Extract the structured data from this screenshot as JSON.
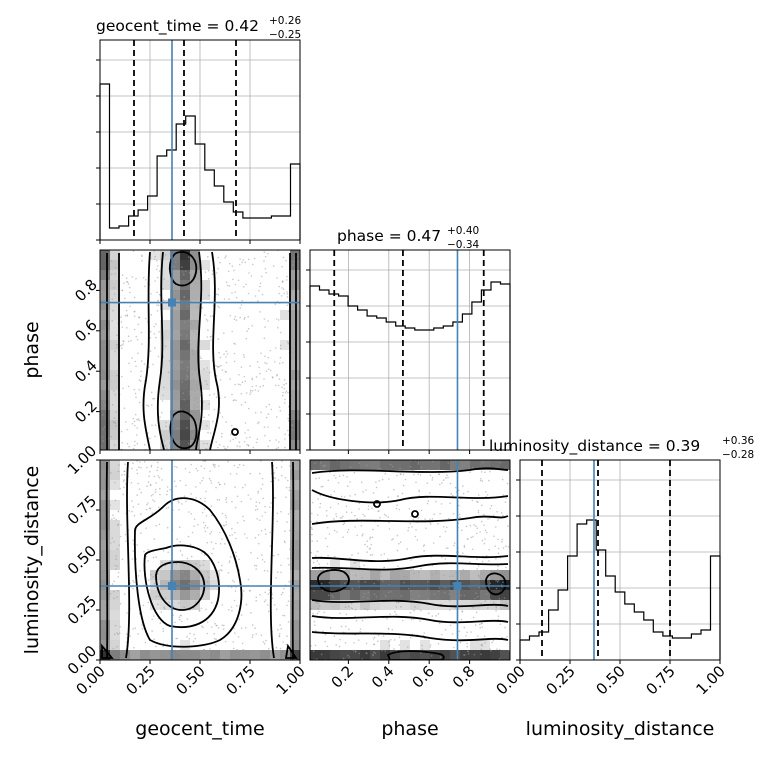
{
  "chart_data": {
    "type": "corner",
    "parameters": [
      {
        "name": "geocent_time",
        "median": "0.42",
        "plus": "+0.26",
        "minus": "−0.25",
        "title_prefix": "geocent_time = ",
        "range": [
          0,
          1
        ],
        "truth": 0.36,
        "quantiles": [
          0.17,
          0.42,
          0.68
        ],
        "hist": [
          0.78,
          0.06,
          0.07,
          0.12,
          0.15,
          0.22,
          0.42,
          0.45,
          0.58,
          0.62,
          0.48,
          0.35,
          0.27,
          0.19,
          0.14,
          0.11,
          0.11,
          0.11,
          0.12,
          0.12,
          0.38
        ]
      },
      {
        "name": "phase",
        "median": "0.47",
        "plus": "+0.40",
        "minus": "−0.34",
        "title_prefix": "phase = ",
        "range": [
          0.01,
          1.0
        ],
        "truth": 0.74,
        "quantiles": [
          0.13,
          0.47,
          0.87
        ],
        "hist": [
          0.82,
          0.8,
          0.78,
          0.77,
          0.72,
          0.7,
          0.67,
          0.66,
          0.64,
          0.62,
          0.61,
          0.6,
          0.6,
          0.61,
          0.62,
          0.64,
          0.68,
          0.74,
          0.8,
          0.84,
          0.83
        ]
      },
      {
        "name": "luminosity_distance",
        "median": "0.39",
        "plus": "+0.36",
        "minus": "−0.28",
        "title_prefix": "luminosity_distance = ",
        "range": [
          0,
          1
        ],
        "truth": 0.37,
        "quantiles": [
          0.11,
          0.39,
          0.75
        ],
        "hist": [
          0.1,
          0.12,
          0.14,
          0.25,
          0.35,
          0.52,
          0.68,
          0.7,
          0.55,
          0.42,
          0.34,
          0.28,
          0.24,
          0.2,
          0.14,
          0.12,
          0.11,
          0.11,
          0.13,
          0.15,
          0.52
        ]
      }
    ],
    "x_ticks": [
      [
        "0.00",
        "0.25",
        "0.50",
        "0.75",
        "1.00"
      ],
      [
        "0.2",
        "0.4",
        "0.6",
        "0.8"
      ],
      [
        "0.00",
        "0.25",
        "0.50",
        "0.75",
        "1.00"
      ]
    ],
    "x_tick_values": [
      [
        0,
        0.25,
        0.5,
        0.75,
        1.0
      ],
      [
        0.2,
        0.4,
        0.6,
        0.8
      ],
      [
        0,
        0.25,
        0.5,
        0.75,
        1.0
      ]
    ],
    "y_ticks_phase": [
      "0.2",
      "0.4",
      "0.6",
      "0.8"
    ],
    "y_tick_values_phase": [
      0.2,
      0.4,
      0.6,
      0.8
    ],
    "y_ticks_lum": [
      "0.00",
      "0.25",
      "0.50",
      "0.75",
      "1.00"
    ],
    "y_tick_values_lum": [
      0,
      0.25,
      0.5,
      0.75,
      1.0
    ],
    "xlabels": [
      "geocent_time",
      "phase",
      "luminosity_distance"
    ],
    "ylabels": [
      "phase",
      "luminosity_distance"
    ],
    "colors": {
      "truth": "#4682b4",
      "lines": "#000000",
      "grid": "#b0b0b0"
    },
    "grid": true
  }
}
